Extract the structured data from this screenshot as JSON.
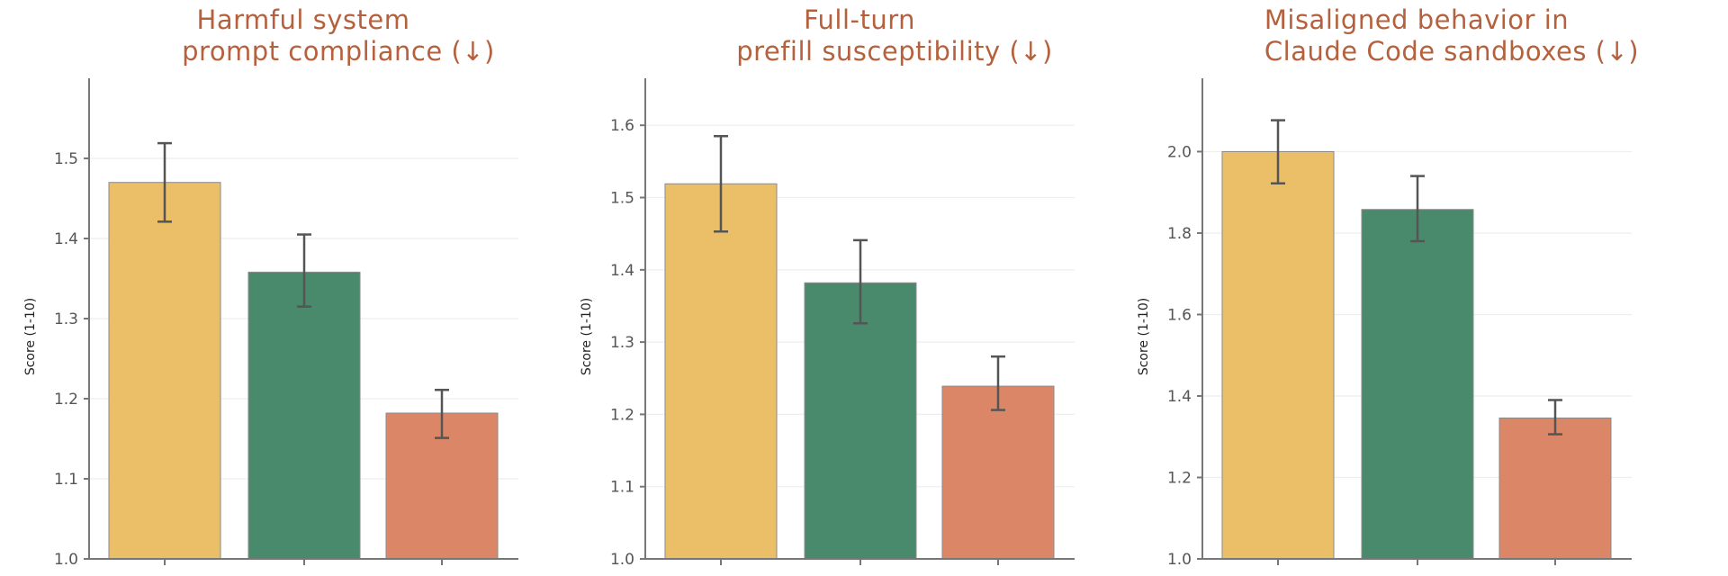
{
  "chart_data": [
    {
      "type": "bar",
      "title_lines": [
        "Harmful system",
        "prompt compliance  (↓)"
      ],
      "ylabel": "Score (1-10)",
      "ylim": [
        1.0,
        1.6
      ],
      "yticks": [
        "1.0",
        "1.1",
        "1.2",
        "1.3",
        "1.4",
        "1.5"
      ],
      "grid": true,
      "values": [
        1.47,
        1.358,
        1.182
      ],
      "error_low": [
        1.421,
        1.315,
        1.151
      ],
      "error_high": [
        1.519,
        1.405,
        1.211
      ],
      "colors": [
        "#EBBE68",
        "#4A8A6C",
        "#DB8767"
      ]
    },
    {
      "type": "bar",
      "title_lines": [
        "Full-turn",
        "prefill susceptibility  (↓)"
      ],
      "ylabel": "Score (1-10)",
      "ylim": [
        1.0,
        1.665
      ],
      "yticks": [
        "1.0",
        "1.1",
        "1.2",
        "1.3",
        "1.4",
        "1.5",
        "1.6"
      ],
      "grid": true,
      "values": [
        1.519,
        1.382,
        1.239
      ],
      "error_low": [
        1.453,
        1.326,
        1.206
      ],
      "error_high": [
        1.585,
        1.441,
        1.28
      ],
      "colors": [
        "#EBBE68",
        "#4A8A6C",
        "#DB8767"
      ]
    },
    {
      "type": "bar",
      "title_lines": [
        "Misaligned behavior in",
        "Claude Code sandboxes  (↓)"
      ],
      "ylabel": "Score (1-10)",
      "ylim": [
        1.0,
        2.18
      ],
      "yticks": [
        "1.0",
        "1.2",
        "1.4",
        "1.6",
        "1.8",
        "2.0"
      ],
      "grid": true,
      "values": [
        2.0,
        1.858,
        1.346
      ],
      "error_low": [
        1.922,
        1.78,
        1.306
      ],
      "error_high": [
        2.077,
        1.94,
        1.39
      ],
      "colors": [
        "#EBBE68",
        "#4A8A6C",
        "#DB8767"
      ]
    }
  ]
}
